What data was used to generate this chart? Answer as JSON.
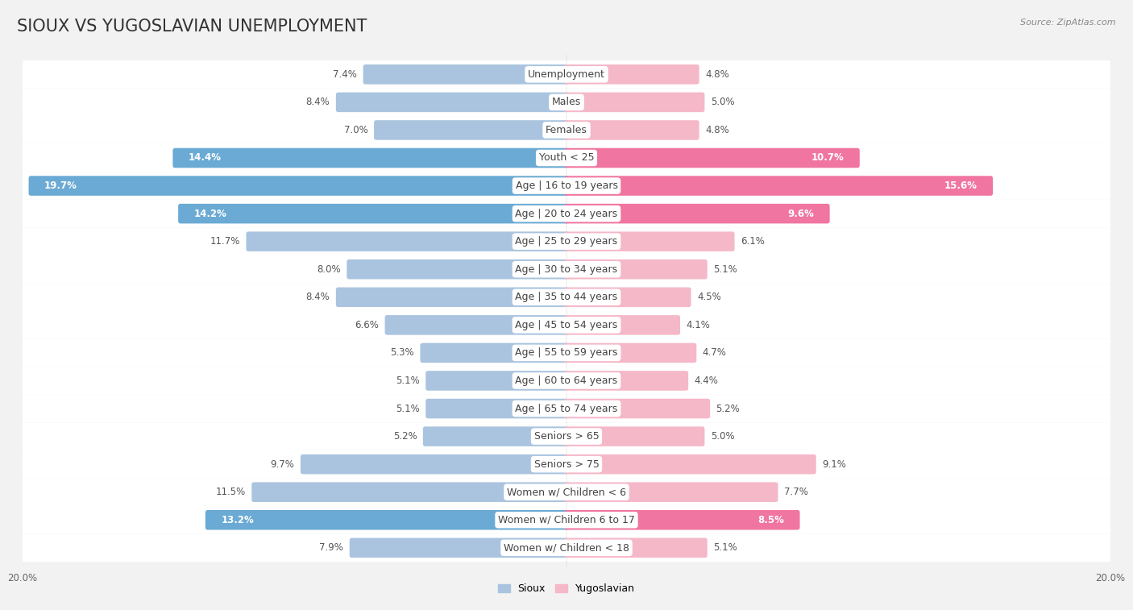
{
  "title": "SIOUX VS YUGOSLAVIAN UNEMPLOYMENT",
  "source": "Source: ZipAtlas.com",
  "categories": [
    "Unemployment",
    "Males",
    "Females",
    "Youth < 25",
    "Age | 16 to 19 years",
    "Age | 20 to 24 years",
    "Age | 25 to 29 years",
    "Age | 30 to 34 years",
    "Age | 35 to 44 years",
    "Age | 45 to 54 years",
    "Age | 55 to 59 years",
    "Age | 60 to 64 years",
    "Age | 65 to 74 years",
    "Seniors > 65",
    "Seniors > 75",
    "Women w/ Children < 6",
    "Women w/ Children 6 to 17",
    "Women w/ Children < 18"
  ],
  "sioux_values": [
    7.4,
    8.4,
    7.0,
    14.4,
    19.7,
    14.2,
    11.7,
    8.0,
    8.4,
    6.6,
    5.3,
    5.1,
    5.1,
    5.2,
    9.7,
    11.5,
    13.2,
    7.9
  ],
  "yugoslavian_values": [
    4.8,
    5.0,
    4.8,
    10.7,
    15.6,
    9.6,
    6.1,
    5.1,
    4.5,
    4.1,
    4.7,
    4.4,
    5.2,
    5.0,
    9.1,
    7.7,
    8.5,
    5.1
  ],
  "sioux_color_normal": "#aac4df",
  "sioux_color_highlight": "#6aaad4",
  "yugoslavian_color_normal": "#f5b8c8",
  "yugoslavian_color_highlight": "#f075a0",
  "max_value": 20.0,
  "bg_color": "#f2f2f2",
  "row_color_white": "#ffffff",
  "row_color_gray": "#e8e8e8",
  "separator_color": "#d0d0d0",
  "highlight_rows": [
    3,
    4,
    5,
    16
  ],
  "title_fontsize": 15,
  "label_fontsize": 9,
  "value_fontsize": 8.5
}
